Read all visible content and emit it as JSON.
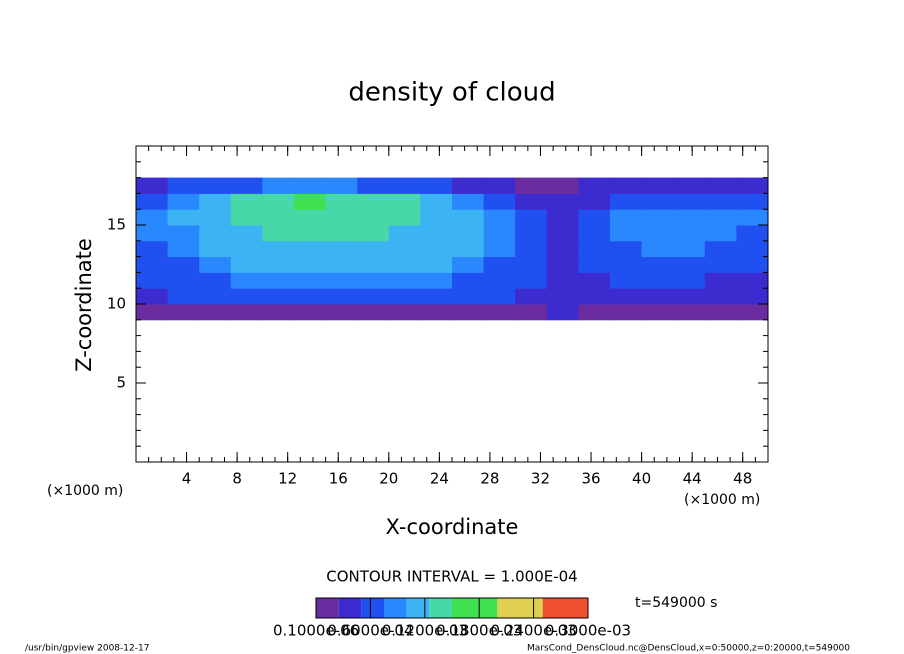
{
  "chart_data": {
    "type": "heatmap",
    "title": "density of cloud",
    "x_label": "X-coordinate",
    "y_label": "Z-coordinate",
    "unit_label": "(×1000 m)",
    "xlim": [
      0,
      50
    ],
    "ylim": [
      0,
      20
    ],
    "xticks": [
      4,
      8,
      12,
      16,
      20,
      24,
      28,
      32,
      36,
      40,
      44,
      48
    ],
    "yticks": [
      5,
      10,
      15
    ],
    "minor_tick_step": 1,
    "x_edges": [
      0,
      2.5,
      5,
      7.5,
      10,
      12.5,
      15,
      17.5,
      20,
      22.5,
      25,
      27.5,
      30,
      32.5,
      35,
      37.5,
      40,
      42.5,
      45,
      47.5,
      50
    ],
    "y_edges": [
      9,
      10,
      11,
      12,
      13,
      14,
      15,
      16,
      17,
      18
    ],
    "values": [
      [
        2e-05,
        2e-05,
        2e-05,
        2e-05,
        2e-05,
        2e-05,
        2e-05,
        2e-05,
        2e-05,
        2e-05,
        2e-05,
        2e-05,
        2e-05,
        3e-05,
        2e-05,
        2e-05,
        2e-05,
        2e-05,
        2e-05,
        2e-05
      ],
      [
        4e-05,
        5e-05,
        5e-05,
        6e-05,
        6e-05,
        6e-05,
        6e-05,
        6e-05,
        6e-05,
        6e-05,
        6e-05,
        5e-05,
        4e-05,
        3e-05,
        3e-05,
        4e-05,
        4e-05,
        4e-05,
        3e-05,
        3e-05
      ],
      [
        5e-05,
        6e-05,
        7e-05,
        8e-05,
        9e-05,
        9e-05,
        9e-05,
        9e-05,
        9e-05,
        8e-05,
        7e-05,
        6e-05,
        5e-05,
        4e-05,
        4e-05,
        5e-05,
        5e-05,
        5e-05,
        4e-05,
        4e-05
      ],
      [
        6e-05,
        7e-05,
        9e-05,
        0.0001,
        0.0001,
        0.0001,
        0.0001,
        0.0001,
        0.0001,
        0.0001,
        9e-05,
        7e-05,
        5e-05,
        4e-05,
        5e-05,
        6e-05,
        6e-05,
        6e-05,
        5e-05,
        5e-05
      ],
      [
        7e-05,
        8e-05,
        0.0001,
        0.00011,
        0.00011,
        0.00011,
        0.00011,
        0.00011,
        0.00011,
        0.00011,
        0.0001,
        8e-05,
        6e-05,
        4e-05,
        6e-05,
        7e-05,
        8e-05,
        8e-05,
        7e-05,
        6e-05
      ],
      [
        8e-05,
        9e-05,
        0.00011,
        0.00012,
        0.00013,
        0.00013,
        0.00013,
        0.00013,
        0.00012,
        0.00012,
        0.00011,
        9e-05,
        6e-05,
        4e-05,
        6e-05,
        8e-05,
        9e-05,
        9e-05,
        8e-05,
        7e-05
      ],
      [
        8e-05,
        0.0001,
        0.00012,
        0.00013,
        0.00014,
        0.00014,
        0.00014,
        0.00014,
        0.00013,
        0.00012,
        0.00011,
        9e-05,
        5e-05,
        4e-05,
        6e-05,
        8e-05,
        9e-05,
        9e-05,
        8e-05,
        8e-05
      ],
      [
        7e-05,
        9e-05,
        0.00012,
        0.00013,
        0.00014,
        0.00015,
        0.00014,
        0.00014,
        0.00013,
        0.00011,
        9e-05,
        6e-05,
        4e-05,
        3e-05,
        4e-05,
        6e-05,
        7e-05,
        6e-05,
        6e-05,
        6e-05
      ],
      [
        4e-05,
        5e-05,
        6e-05,
        7e-05,
        8e-05,
        8e-05,
        8e-05,
        7e-05,
        6e-05,
        5e-05,
        4e-05,
        3e-05,
        2e-05,
        2e-05,
        3e-05,
        3e-05,
        3e-05,
        3e-05,
        3e-05,
        3e-05
      ]
    ],
    "levels": [
      0,
      2.5e-05,
      5e-05,
      7.5e-05,
      0.0001,
      0.000125,
      0.00015,
      0.0002,
      0.00025,
      0.0003
    ],
    "colors": [
      "#6a2c9e",
      "#3c2cd0",
      "#2050f0",
      "#2a88ff",
      "#3cb4f4",
      "#48d8a8",
      "#40e050",
      "#e0d050",
      "#f05030"
    ],
    "clim": [
      0,
      0.0003
    ],
    "cticks": [
      {
        "value": 1e-07,
        "label": "0.1000e-06"
      },
      {
        "value": 6e-05,
        "label": "0.6000e-04"
      },
      {
        "value": 0.00012,
        "label": "0.1200e-03"
      },
      {
        "value": 0.00018,
        "label": "0.1800e-03"
      },
      {
        "value": 0.00024,
        "label": "0.2400e-03"
      },
      {
        "value": 0.0003,
        "label": "0.3000e-03"
      }
    ],
    "contour_label": "CONTOUR INTERVAL = 1.000E-04",
    "time_label": "t=549000 s"
  },
  "footer": {
    "left": "/usr/bin/gpview  2008-12-17",
    "right": "MarsCond_DensCloud.nc@DensCloud,x=0:50000,z=0:20000,t=549000"
  }
}
